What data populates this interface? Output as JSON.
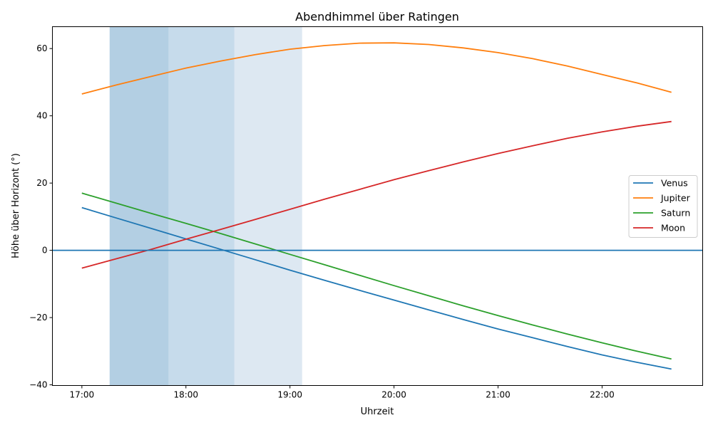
{
  "chart_data": {
    "type": "line",
    "title": "Abendhimmel über Ratingen",
    "xlabel": "Uhrzeit",
    "ylabel": "Höhe über Horizont (°)",
    "xlim": [
      "16:43",
      "22:58"
    ],
    "ylim": [
      -40.2,
      66.5
    ],
    "x_ticks": [
      "17:00",
      "18:00",
      "19:00",
      "20:00",
      "21:00",
      "22:00"
    ],
    "y_ticks": [
      -40,
      -20,
      0,
      20,
      40,
      60
    ],
    "y_tick_labels": [
      "−40",
      "−20",
      "0",
      "20",
      "40",
      "60"
    ],
    "grid": false,
    "legend_position": "center-right",
    "horizontal_line": {
      "y": 0,
      "color": "#1f77b4"
    },
    "shaded_spans": [
      {
        "start": "17:16",
        "end": "17:50",
        "color": "#b3cfe3"
      },
      {
        "start": "17:50",
        "end": "18:28",
        "color": "#c6dbeb"
      },
      {
        "start": "18:28",
        "end": "19:07",
        "color": "#dde8f2"
      }
    ],
    "x": [
      "17:00",
      "17:20",
      "17:40",
      "18:00",
      "18:20",
      "18:40",
      "19:00",
      "19:20",
      "19:40",
      "20:00",
      "20:20",
      "20:40",
      "21:00",
      "21:20",
      "21:40",
      "22:00",
      "22:20",
      "22:40"
    ],
    "series": [
      {
        "name": "Venus",
        "color": "#1f77b4",
        "values": [
          12.7,
          9.6,
          6.5,
          3.4,
          0.3,
          -2.8,
          -5.9,
          -8.9,
          -11.9,
          -14.8,
          -17.7,
          -20.6,
          -23.4,
          -26.0,
          -28.6,
          -31.1,
          -33.3,
          -35.3
        ]
      },
      {
        "name": "Jupiter",
        "color": "#ff7f0e",
        "values": [
          46.5,
          49.2,
          51.7,
          54.2,
          56.3,
          58.2,
          59.8,
          60.9,
          61.6,
          61.7,
          61.2,
          60.2,
          58.8,
          57.0,
          54.8,
          52.3,
          49.8,
          47.0
        ]
      },
      {
        "name": "Saturn",
        "color": "#2ca02c",
        "values": [
          17.0,
          14.0,
          11.0,
          8.0,
          5.0,
          1.9,
          -1.2,
          -4.3,
          -7.4,
          -10.5,
          -13.5,
          -16.5,
          -19.4,
          -22.2,
          -24.9,
          -27.5,
          -30.0,
          -32.3
        ]
      },
      {
        "name": "Moon",
        "color": "#d62728",
        "values": [
          -5.3,
          -2.5,
          0.3,
          3.3,
          6.2,
          9.2,
          12.2,
          15.2,
          18.1,
          21.0,
          23.7,
          26.3,
          28.8,
          31.1,
          33.3,
          35.2,
          36.9,
          38.3
        ]
      }
    ]
  }
}
